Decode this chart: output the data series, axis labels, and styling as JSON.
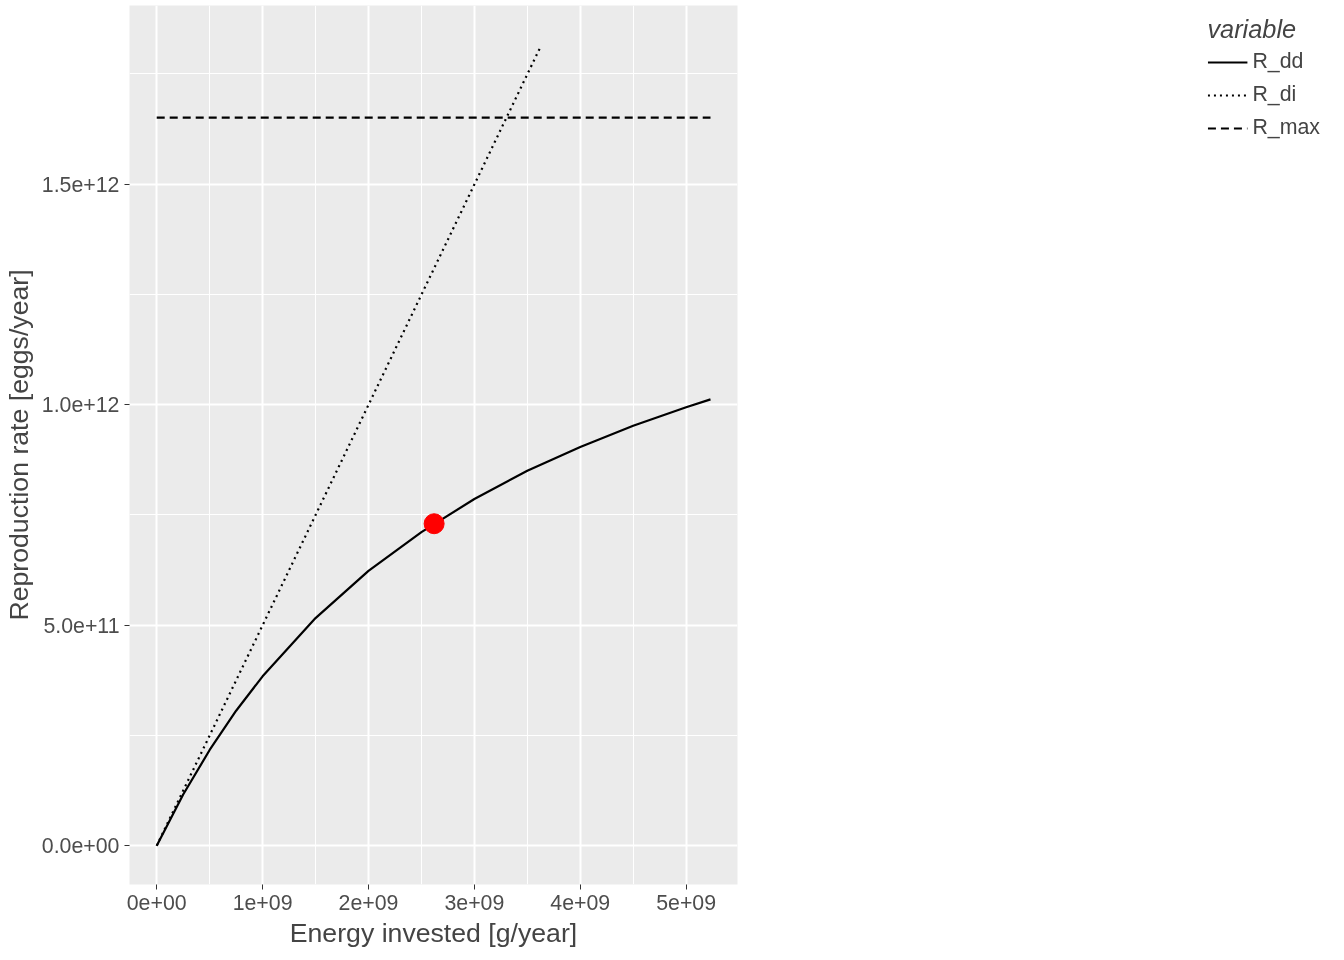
{
  "chart_data": {
    "type": "line",
    "xlabel": "Energy invested [g/year]",
    "ylabel": "Reproduction rate [eggs/year]",
    "legend_title": "variable",
    "legend": "right",
    "grid": true,
    "xlim": [
      -257000000.0,
      5485000000.0
    ],
    "ylim": [
      -88000000000.0,
      1905000000000.0
    ],
    "xticks": [
      {
        "value": 0,
        "label": "0e+00"
      },
      {
        "value": 1000000000.0,
        "label": "1e+09"
      },
      {
        "value": 2000000000.0,
        "label": "2e+09"
      },
      {
        "value": 3000000000.0,
        "label": "3e+09"
      },
      {
        "value": 4000000000.0,
        "label": "4e+09"
      },
      {
        "value": 5000000000.0,
        "label": "5e+09"
      }
    ],
    "yticks": [
      {
        "value": 0,
        "label": "0.0e+00"
      },
      {
        "value": 500000000000.0,
        "label": "5.0e+11"
      },
      {
        "value": 1000000000000.0,
        "label": "1.0e+12"
      },
      {
        "value": 1500000000000.0,
        "label": "1.5e+12"
      }
    ],
    "series": [
      {
        "name": "R_dd",
        "color": "#000000",
        "line_style": "solid",
        "x": [
          0,
          250000000.0,
          500000000.0,
          750000000.0,
          1000000000.0,
          1500000000.0,
          2000000000.0,
          2500000000.0,
          3000000000.0,
          3500000000.0,
          4000000000.0,
          4500000000.0,
          5000000000.0,
          5230000000.0
        ],
        "values": [
          0,
          116000000000.0,
          217000000000.0,
          306000000000.0,
          384000000000.0,
          516000000000.0,
          623000000000.0,
          711000000000.0,
          786000000000.0,
          850000000000.0,
          904000000000.0,
          952000000000.0,
          994000000000.0,
          1012000000000.0
        ]
      },
      {
        "name": "R_di",
        "color": "#000000",
        "line_style": "dotted",
        "x": [
          0,
          3626000000.0
        ],
        "values": [
          0,
          1812000000000.0
        ]
      },
      {
        "name": "R_max",
        "color": "#000000",
        "line_style": "dashed",
        "x": [
          0,
          5230000000.0
        ],
        "values": [
          1651000000000.0,
          1651000000000.0
        ]
      },
      {
        "type": "scatter",
        "color": "#ff0000",
        "marker": "circle",
        "x": [
          2620000000.0
        ],
        "values": [
          730000000000.0
        ]
      }
    ]
  }
}
